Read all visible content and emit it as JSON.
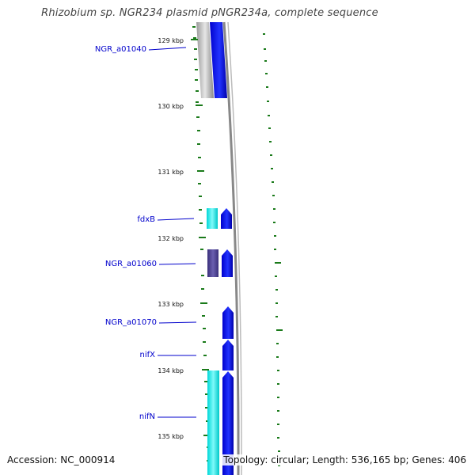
{
  "title": "Rhizobium sp. NGR234 plasmid pNGR234a, complete sequence",
  "accession": "Accession: NC_000914",
  "summary": "Topology: circular; Length: 536,165 bp; Genes: 406",
  "colors": {
    "background": "#ffffff",
    "title_text": "#444444",
    "tick": "#1a7a1a",
    "label_link": "#0000cc",
    "cds_blue": "#0000ee",
    "rna_cyan": "#00e5e5",
    "cds_purple": "#4a3f8c",
    "backbone_gray": "#888888"
  },
  "scale_labels": [
    "129 kbp",
    "130 kbp",
    "131 kbp",
    "132 kbp",
    "133 kbp",
    "134 kbp",
    "135 kbp"
  ],
  "genes": [
    {
      "label": "NGR_a01040",
      "strand": "+",
      "feature_color": "cds_blue"
    },
    {
      "label": "fdxB",
      "strand": "+",
      "feature_color": "cds_blue"
    },
    {
      "label": "NGR_a01060",
      "strand": "+",
      "feature_color": "cds_blue"
    },
    {
      "label": "NGR_a01070",
      "strand": "+",
      "feature_color": "cds_blue"
    },
    {
      "label": "nifX",
      "strand": "+",
      "feature_color": "cds_blue"
    },
    {
      "label": "nifN",
      "strand": "+",
      "feature_color": "cds_blue"
    }
  ]
}
